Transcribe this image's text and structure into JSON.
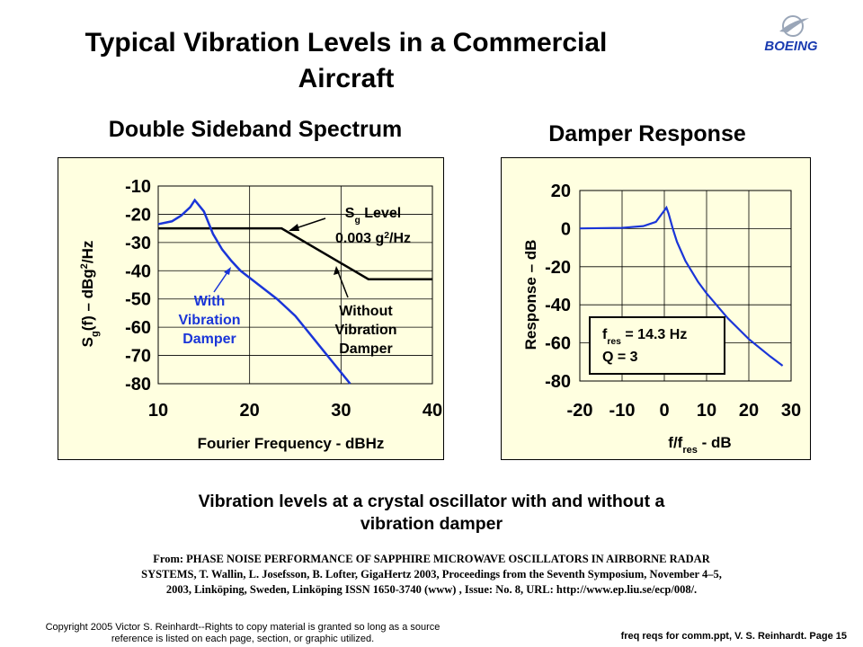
{
  "slide": {
    "title_line1": "Typical Vibration Levels in a Commercial",
    "title_line2": "Aircraft",
    "logo_text": "BOEING",
    "caption_line1": "Vibration levels at a crystal oscillator with and without a",
    "caption_line2": "vibration damper",
    "reference_line1": "From: PHASE NOISE PERFORMANCE OF SAPPHIRE MICROWAVE OSCILLATORS IN AIRBORNE RADAR",
    "reference_line2": "SYSTEMS, T. Wallin, L. Josefsson, B. Lofter, GigaHertz 2003, Proceedings from the Seventh Symposium, November 4–5,",
    "reference_line3": "2003, Linköping, Sweden, Linköping ISSN 1650-3740 (www) , Issue: No. 8, URL: http://www.ep.liu.se/ecp/008/.",
    "copyright_line1": "Copyright 2005 Victor S. Reinhardt--Rights to copy material is granted so long as a source",
    "copyright_line2": "reference is listed on each page, section, or graphic utilized.",
    "footer": "freq reqs for comm.ppt,  V. S. Reinhardt.  Page 15"
  },
  "chart_data": [
    {
      "type": "line",
      "title": "Double Sideband Spectrum",
      "xlabel": "Fourier Frequency - dBHz",
      "ylabel_parts": [
        "S",
        "g",
        "(f) – dBg",
        "2",
        "/Hz"
      ],
      "xlim": [
        10,
        40
      ],
      "ylim": [
        -80,
        -10
      ],
      "xticks": [
        "10",
        "20",
        "30",
        "40"
      ],
      "yticks": [
        "-10",
        "-20",
        "-30",
        "-40",
        "-50",
        "-60",
        "-70",
        "-80"
      ],
      "grid": true,
      "series": [
        {
          "name": "Without Vibration Damper",
          "color": "#000000",
          "x": [
            10,
            23.5,
            33,
            40
          ],
          "y": [
            -25,
            -25,
            -43,
            -43
          ]
        },
        {
          "name": "With Vibration Damper",
          "color": "#1a35d8",
          "x": [
            10,
            11.5,
            12.5,
            13.5,
            14,
            15,
            16,
            17,
            18,
            19,
            20,
            21,
            22,
            23,
            24,
            25,
            26,
            27,
            28,
            29,
            30,
            31
          ],
          "y": [
            -23.5,
            -22.5,
            -20.5,
            -17.5,
            -15,
            -19,
            -27,
            -32.5,
            -36.5,
            -40,
            -42.5,
            -45,
            -47.5,
            -50,
            -53,
            -56,
            -60,
            -64,
            -68,
            -72,
            -76,
            -80
          ]
        }
      ],
      "annotations": {
        "sg_level_parts": [
          "S",
          "g",
          " Level"
        ],
        "sg_value_parts": [
          "0.003 g",
          "2",
          "/Hz"
        ],
        "with_damper": [
          "With",
          "Vibration",
          "Damper"
        ],
        "without_damper": [
          "Without",
          "Vibration",
          "Damper"
        ]
      },
      "colors": {
        "background": "#ffffe0",
        "grid": "#000000"
      }
    },
    {
      "type": "line",
      "title": "Damper Response",
      "xlabel_parts": [
        "f/f",
        "res",
        " - dB"
      ],
      "ylabel": "Response – dB",
      "xlim": [
        -20,
        30
      ],
      "ylim": [
        -80,
        20
      ],
      "xticks": [
        "-20",
        "-10",
        "0",
        "10",
        "20",
        "30"
      ],
      "yticks": [
        "20",
        "0",
        "-20",
        "-40",
        "-60",
        "-80"
      ],
      "grid": true,
      "series": [
        {
          "name": "Damper Response",
          "color": "#1a35d8",
          "x": [
            -20,
            -10,
            -5,
            -2,
            0,
            0.5,
            1,
            2,
            3,
            5,
            8,
            10,
            15,
            20,
            25,
            28
          ],
          "y": [
            0.1,
            0.4,
            1.3,
            3.5,
            9.5,
            11,
            8,
            0,
            -7,
            -17,
            -28,
            -34,
            -47,
            -58,
            -67,
            -72
          ]
        }
      ],
      "legend_box": {
        "line1_parts": [
          "f",
          "res",
          " = 14.3 Hz"
        ],
        "line2": "Q     = 3"
      },
      "colors": {
        "background": "#ffffe0",
        "grid": "#000000"
      }
    }
  ]
}
